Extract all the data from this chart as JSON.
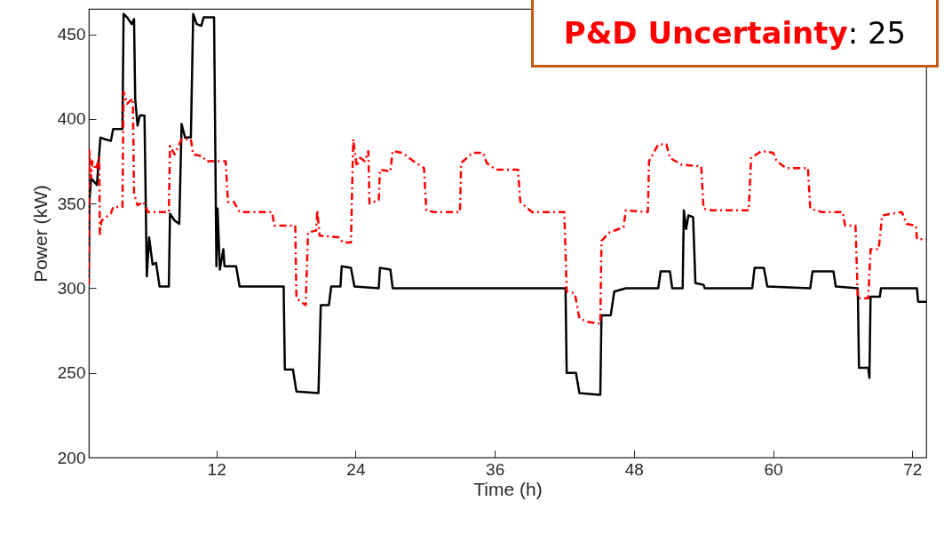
{
  "chart_data": {
    "type": "line",
    "xlabel": "Time (h)",
    "ylabel": "Power (kW)",
    "annotations": [
      "P&D Uncertainty: 25"
    ],
    "xlim": [
      1,
      73.2
    ],
    "xticks": [
      12,
      24,
      36,
      48,
      60,
      72
    ],
    "ylim": [
      200,
      465
    ],
    "yticks": [
      200,
      250,
      300,
      350,
      400,
      450
    ],
    "grid": false,
    "marker": "none",
    "series": [
      {
        "color": "#000000",
        "line_style": "solid",
        "x": [
          1.0,
          1.05,
          1.2,
          1.7,
          2.0,
          2.4,
          2.9,
          3.1,
          3.9,
          4.0,
          4.3,
          4.7,
          4.9,
          5.0,
          5.2,
          5.4,
          5.8,
          6.0,
          6.2,
          6.5,
          6.8,
          7.1,
          7.9,
          8.0,
          8.4,
          8.8,
          9.0,
          9.3,
          9.8,
          10.0,
          10.3,
          10.7,
          10.9,
          11.8,
          12.0,
          12.1,
          12.3,
          12.6,
          12.7,
          13.7,
          14.0,
          17.8,
          17.9,
          18.6,
          18.9,
          20.8,
          21.0,
          21.7,
          21.9,
          22.7,
          22.8,
          23.6,
          23.9,
          26.0,
          26.1,
          27.0,
          27.2,
          42.1,
          42.2,
          43.0,
          43.3,
          45.1,
          45.2,
          46.0,
          46.3,
          47.3,
          50.1,
          50.3,
          51.1,
          51.3,
          52.2,
          52.3,
          52.5,
          52.7,
          53.1,
          53.3,
          54.0,
          54.1,
          58.2,
          58.4,
          59.2,
          59.5,
          63.2,
          63.4,
          65.2,
          65.4,
          67.3,
          67.4,
          68.2,
          68.3,
          68.4,
          69.2,
          69.3,
          72.4,
          72.5,
          73.2
        ],
        "values": [
          302,
          351,
          365,
          361,
          389,
          388,
          387,
          394,
          394,
          462,
          460,
          456,
          459,
          412,
          396,
          402,
          402,
          307,
          330,
          314,
          315,
          301,
          301,
          344,
          340,
          338,
          397,
          389,
          389,
          462,
          456,
          455,
          460,
          460,
          313,
          347,
          311,
          323,
          313,
          313,
          301,
          301,
          252,
          252,
          239,
          238,
          290,
          290,
          301,
          301,
          313,
          312,
          301,
          300,
          312,
          311,
          300,
          300,
          250,
          250,
          238,
          237,
          284,
          284,
          298,
          300,
          300,
          310,
          310,
          300,
          300,
          346,
          335,
          343,
          342,
          303,
          302,
          300,
          300,
          312,
          312,
          301,
          300,
          310,
          310,
          301,
          300,
          253,
          253,
          247,
          295,
          295,
          300,
          300,
          292,
          292
        ]
      },
      {
        "color": "#ff0000",
        "line_style": "dashed",
        "x": [
          1.0,
          1.05,
          1.2,
          1.3,
          1.6,
          1.9,
          1.95,
          2.1,
          2.9,
          3.1,
          3.9,
          4.0,
          4.3,
          4.8,
          4.9,
          5.2,
          5.7,
          6.1,
          7.9,
          8.0,
          8.4,
          9.0,
          9.8,
          10.0,
          10.8,
          11.1,
          12.8,
          13.0,
          13.5,
          14.0,
          16.8,
          17.0,
          18.8,
          18.9,
          19.7,
          19.9,
          20.6,
          20.7,
          20.9,
          22.6,
          22.9,
          23.6,
          23.8,
          24.1,
          24.4,
          24.8,
          25.1,
          25.2,
          26.0,
          26.1,
          27.0,
          27.2,
          28.0,
          29.0,
          29.9,
          30.1,
          30.8,
          33.0,
          33.1,
          34.1,
          35.0,
          35.3,
          36.1,
          38.0,
          38.2,
          39.2,
          42.0,
          42.2,
          42.9,
          43.3,
          44.1,
          45.1,
          45.2,
          45.9,
          47.1,
          47.3,
          49.2,
          49.3,
          50.1,
          50.8,
          51.1,
          52.1,
          53.8,
          54.0,
          54.7,
          57.9,
          58.1,
          59.0,
          60.0,
          60.3,
          61.1,
          63.0,
          63.2,
          64.2,
          66.0,
          66.2,
          67.1,
          67.3,
          68.2,
          68.4,
          69.1,
          69.4,
          71.1,
          71.5,
          72.3,
          72.4,
          73.2
        ],
        "values": [
          302,
          382,
          365,
          375,
          370,
          377,
          332,
          340,
          344,
          348,
          348,
          416,
          409,
          412,
          356,
          349,
          351,
          345,
          345,
          384,
          379,
          388,
          388,
          379,
          378,
          375,
          375,
          351,
          351,
          345,
          345,
          337,
          337,
          294,
          290,
          333,
          334,
          346,
          331,
          330,
          327,
          327,
          388,
          372,
          377,
          375,
          381,
          350,
          352,
          370,
          369,
          381,
          380,
          375,
          371,
          346,
          345,
          345,
          374,
          380,
          380,
          374,
          370,
          370,
          351,
          345,
          345,
          298,
          297,
          282,
          280,
          279,
          328,
          333,
          336,
          346,
          345,
          375,
          385,
          385,
          377,
          373,
          372,
          347,
          346,
          346,
          377,
          381,
          380,
          375,
          371,
          371,
          347,
          345,
          345,
          337,
          337,
          294,
          294,
          323,
          323,
          343,
          345,
          338,
          337,
          329,
          329
        ]
      }
    ]
  }
}
